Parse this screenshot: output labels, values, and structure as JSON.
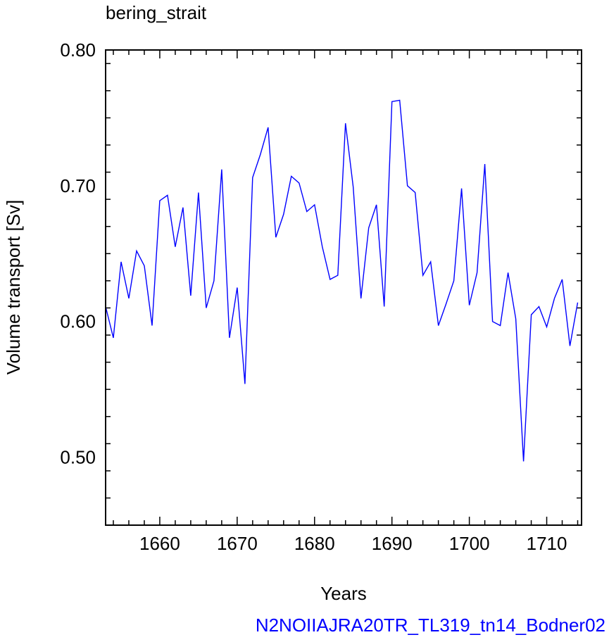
{
  "chart_data": {
    "type": "line",
    "title": "bering_strait",
    "subtitle": "N2NOIIAJRA20TR_TL319_tn14_Bodner02",
    "xlabel": "Years",
    "ylabel": "Volume transport [Sv]",
    "xlim": [
      1653,
      1714.5
    ],
    "ylim": [
      0.45,
      0.8
    ],
    "x_ticks": [
      1660,
      1670,
      1680,
      1690,
      1700,
      1710
    ],
    "y_ticks": [
      0.5,
      0.6,
      0.7,
      0.8
    ],
    "x_tick_labels": [
      "1660",
      "1670",
      "1680",
      "1690",
      "1700",
      "1710"
    ],
    "y_tick_labels": [
      "0.50",
      "0.60",
      "0.70",
      "0.80"
    ],
    "grid": false,
    "series": [
      {
        "color": "#0000ff",
        "x": [
          1653,
          1654,
          1655,
          1656,
          1657,
          1658,
          1659,
          1660,
          1661,
          1662,
          1663,
          1664,
          1665,
          1666,
          1667,
          1668,
          1669,
          1670,
          1671,
          1672,
          1673,
          1674,
          1675,
          1676,
          1677,
          1678,
          1679,
          1680,
          1681,
          1682,
          1683,
          1684,
          1685,
          1686,
          1687,
          1688,
          1689,
          1690,
          1691,
          1692,
          1693,
          1694,
          1695,
          1696,
          1697,
          1698,
          1699,
          1700,
          1701,
          1702,
          1703,
          1704,
          1705,
          1706,
          1707,
          1708,
          1709,
          1710,
          1711,
          1712,
          1713,
          1714
        ],
        "y": [
          0.611,
          0.588,
          0.644,
          0.617,
          0.652,
          0.641,
          0.597,
          0.689,
          0.693,
          0.655,
          0.684,
          0.619,
          0.695,
          0.61,
          0.63,
          0.712,
          0.588,
          0.625,
          0.554,
          0.706,
          0.723,
          0.743,
          0.662,
          0.679,
          0.707,
          0.702,
          0.681,
          0.686,
          0.655,
          0.631,
          0.634,
          0.746,
          0.699,
          0.617,
          0.669,
          0.686,
          0.611,
          0.762,
          0.763,
          0.7,
          0.695,
          0.634,
          0.644,
          0.597,
          0.613,
          0.63,
          0.698,
          0.612,
          0.636,
          0.716,
          0.6,
          0.597,
          0.636,
          0.602,
          0.497,
          0.605,
          0.611,
          0.596,
          0.617,
          0.631,
          0.582,
          0.614
        ]
      }
    ]
  }
}
